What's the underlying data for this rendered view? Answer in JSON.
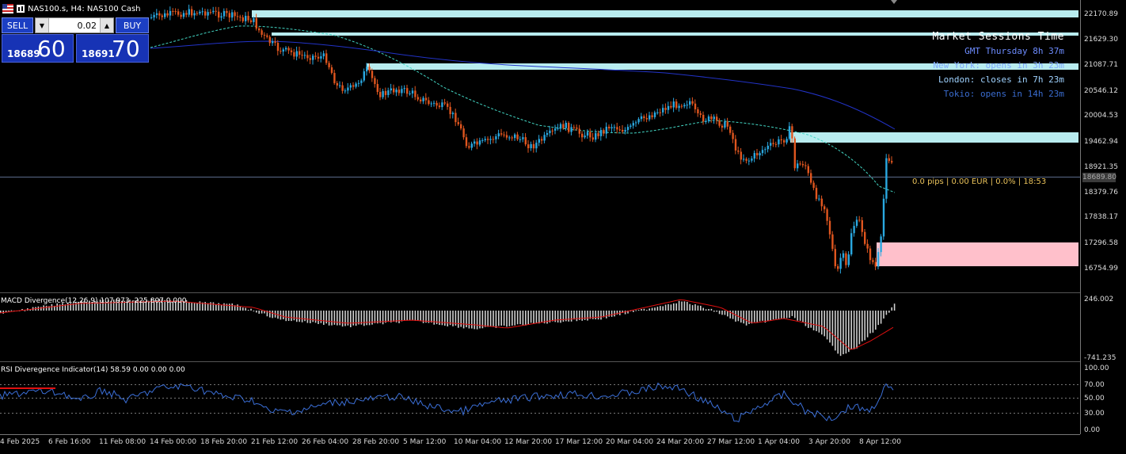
{
  "header": {
    "symbol_title": "NAS100.s, H4:  NAS100 Cash"
  },
  "trade_panel": {
    "sell_label": "SELL",
    "buy_label": "BUY",
    "lots": "0.02",
    "sell_price_small": "18689",
    "sell_price_big": "60",
    "buy_price_small": "18691",
    "buy_price_big": "70"
  },
  "sessions": {
    "title": "Market Sessions Time",
    "gmt": "GMT Thursday 8h 37m",
    "new_york": "New York: opens in 3h 23m",
    "london": "London: closes in 7h 23m",
    "tokio": "Tokio: opens in 14h 23m"
  },
  "position_info": "0.0 pips | 0.00 EUR | 0.0% | 18:53",
  "current_price_label": "18689.80",
  "price_axis": [
    "22170.89",
    "21629.30",
    "21087.71",
    "20546.12",
    "20004.53",
    "19462.94",
    "18921.35",
    "18379.76",
    "17838.17",
    "17296.58",
    "16754.99"
  ],
  "macd": {
    "label": "MACD Divergence(12,26,9) 107.973 -225.807 0.000",
    "axis": [
      "246.002",
      "-741.235"
    ]
  },
  "rsi": {
    "label": "RSI Diveregence Indicator(14) 58.59 0.00 0.00 0.00",
    "axis": [
      "100.00",
      "70.00",
      "50.00",
      "30.00",
      "0.00"
    ]
  },
  "time_axis": [
    "4 Feb 2025",
    "6 Feb 16:00",
    "11 Feb 08:00",
    "14 Feb 00:00",
    "18 Feb 20:00",
    "21 Feb 12:00",
    "26 Feb 04:00",
    "28 Feb 20:00",
    "5 Mar 12:00",
    "10 Mar 04:00",
    "12 Mar 20:00",
    "17 Mar 12:00",
    "20 Mar 04:00",
    "24 Mar 20:00",
    "27 Mar 12:00",
    "1 Apr 04:00",
    "3 Apr 20:00",
    "8 Apr 12:00"
  ],
  "colors": {
    "bull": "#2aa8e0",
    "bear": "#e0561f",
    "supply_zone": "#b8ecef",
    "demand_zone": "#ffc0cb",
    "ma_fast": "#43d6c4",
    "ma_slow": "#2233c8",
    "macd_signal": "#e01010",
    "rsi_line": "#3b6fd8"
  }
}
